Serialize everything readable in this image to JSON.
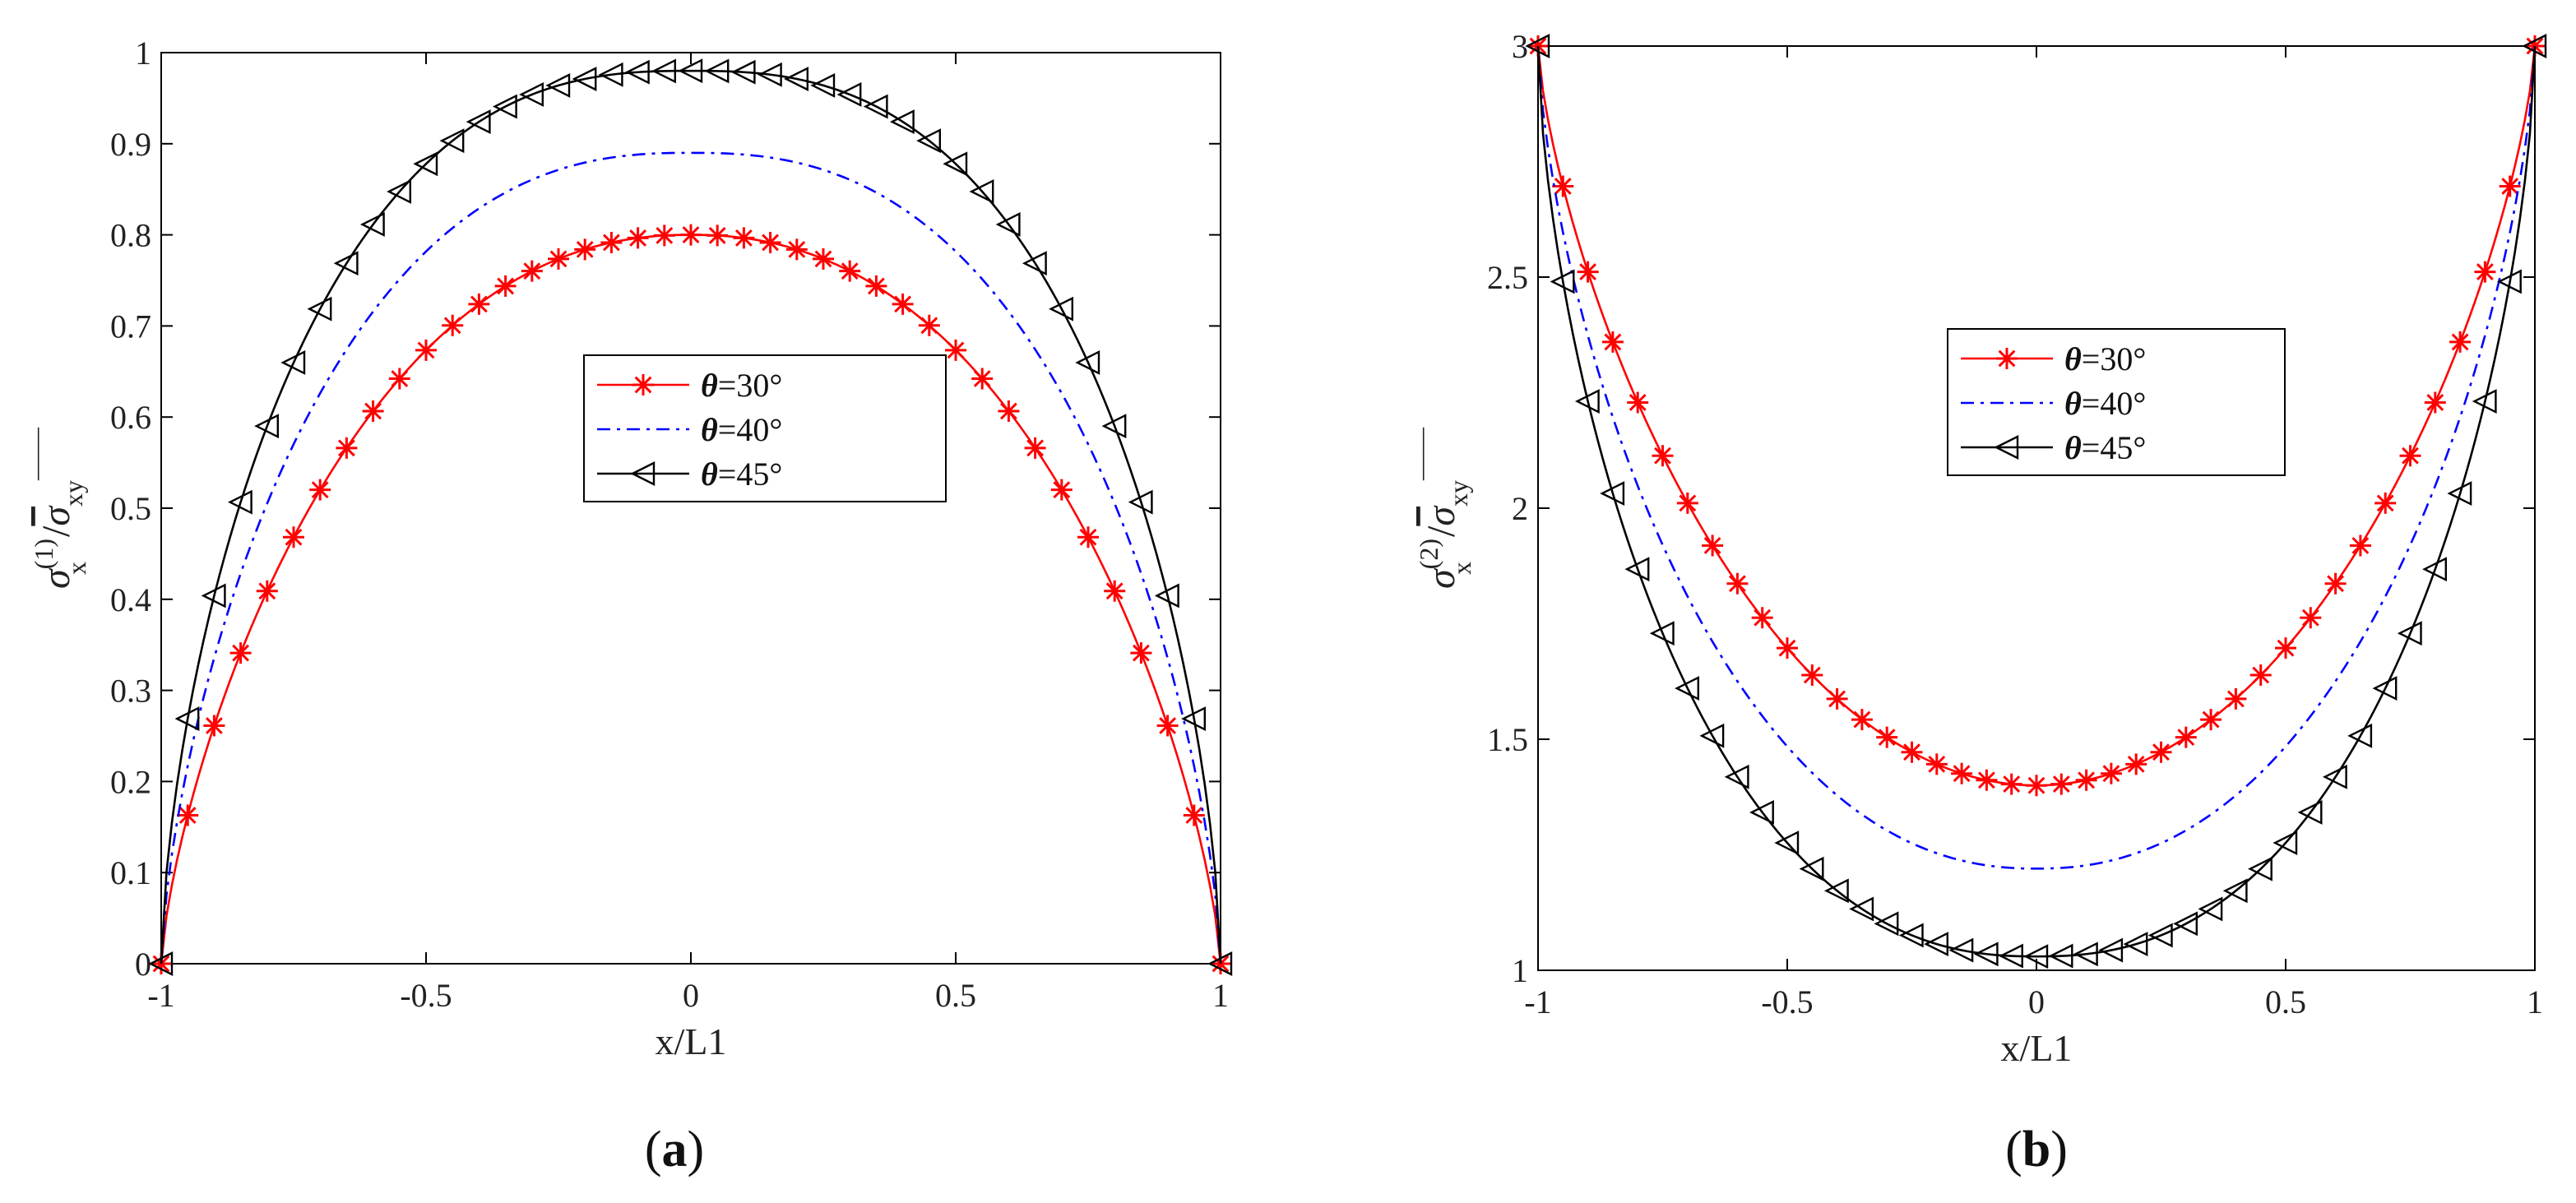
{
  "chart_data": [
    {
      "id": "a",
      "type": "line",
      "panel_label": "(a)",
      "panel_letter": "a",
      "xlabel": "x/L1",
      "ylabel": {
        "base": "σ",
        "sup": "(1)",
        "sub": "x",
        "den": "σ",
        "den_sub": "xy"
      },
      "xlim": [
        -1,
        1
      ],
      "ylim": [
        0,
        1
      ],
      "xticks": [
        -1,
        -0.5,
        0,
        0.5,
        1
      ],
      "xtick_labels": [
        "-1",
        "-0.5",
        "0",
        "0.5",
        "1"
      ],
      "yticks": [
        0,
        0.1,
        0.2,
        0.3,
        0.4,
        0.5,
        0.6,
        0.7,
        0.8,
        0.9,
        1
      ],
      "ytick_labels": [
        "0",
        "0.1",
        "0.2",
        "0.3",
        "0.4",
        "0.5",
        "0.6",
        "0.7",
        "0.8",
        "0.9",
        "1"
      ],
      "legend_position": "center",
      "series": [
        {
          "name": "θ=30°",
          "theta": "θ",
          "rest": "=30°",
          "color": "#ff0000",
          "dash": "solid",
          "marker": "asterisk",
          "peak": 0.8,
          "f": 0.45,
          "p": 1.4
        },
        {
          "name": "θ=40°",
          "theta": "θ",
          "rest": "=40°",
          "color": "#0000ff",
          "dash": "dashdot",
          "marker": "none",
          "peak": 0.89,
          "f": 0.4,
          "p": 1.5
        },
        {
          "name": "θ=45°",
          "theta": "θ",
          "rest": "=45°",
          "color": "#000000",
          "dash": "solid",
          "marker": "triangle-left",
          "peak": 0.98,
          "f": 0.38,
          "p": 1.6
        }
      ]
    },
    {
      "id": "b",
      "type": "line",
      "panel_label": "(b)",
      "panel_letter": "b",
      "xlabel": "x/L1",
      "ylabel": {
        "base": "σ",
        "sup": "(2)",
        "sub": "x",
        "den": "σ",
        "den_sub": "xy"
      },
      "xlim": [
        -1,
        1
      ],
      "ylim": [
        1,
        3
      ],
      "xticks": [
        -1,
        -0.5,
        0,
        0.5,
        1
      ],
      "xtick_labels": [
        "-1",
        "-0.5",
        "0",
        "0.5",
        "1"
      ],
      "yticks": [
        1,
        1.5,
        2,
        2.5,
        3
      ],
      "ytick_labels": [
        "1",
        "1.5",
        "2",
        "2.5",
        "3"
      ],
      "legend_position": "upper-center",
      "series": [
        {
          "name": "θ=30°",
          "theta": "θ",
          "rest": "=30°",
          "color": "#ff0000",
          "dash": "solid",
          "marker": "asterisk",
          "min": 1.4,
          "end": 3.0,
          "f": 0.5,
          "p": 1.4
        },
        {
          "name": "θ=40°",
          "theta": "θ",
          "rest": "=40°",
          "color": "#0000ff",
          "dash": "dashdot",
          "marker": "none",
          "min": 1.22,
          "end": 3.0,
          "f": 0.45,
          "p": 1.5
        },
        {
          "name": "θ=45°",
          "theta": "θ",
          "rest": "=45°",
          "color": "#000000",
          "dash": "solid",
          "marker": "triangle-left",
          "min": 1.03,
          "end": 3.0,
          "f": 0.42,
          "p": 1.6
        }
      ]
    }
  ]
}
